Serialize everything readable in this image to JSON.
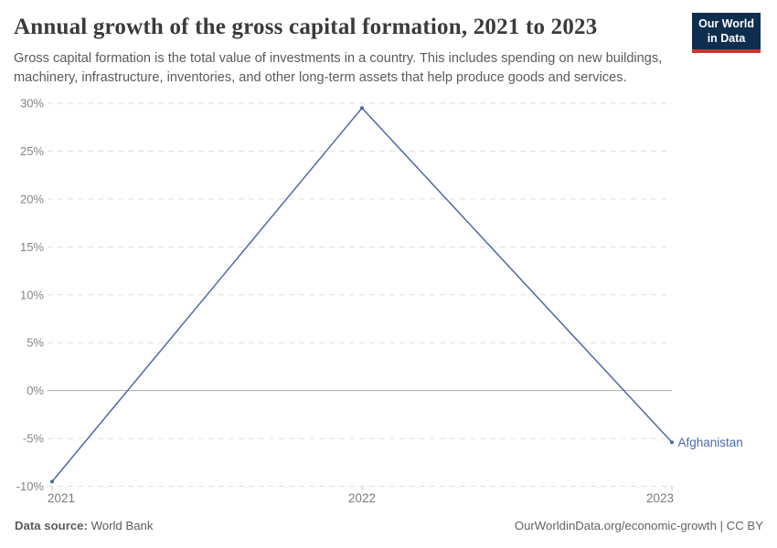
{
  "header": {
    "title": "Annual growth of the gross capital formation, 2021 to 2023",
    "subtitle": "Gross capital formation is the total value of investments in a country. This includes spending on new buildings, machinery, infrastructure, inventories, and other long-term assets that help produce goods and services.",
    "logo": {
      "line1": "Our World",
      "line2": "in Data"
    }
  },
  "footer": {
    "datasource_label": "Data source:",
    "datasource_value": "World Bank",
    "credit": "OurWorldinData.org/economic-growth | CC BY"
  },
  "colors": {
    "series": "#4b6aa5",
    "grid": "#dedede",
    "zero_line": "#ababab",
    "axis_text": "#858585",
    "x_tick": "#c4c4c4",
    "title_text": "#3a3a3a",
    "subtitle_text": "#5b5b5b",
    "logo_bg": "#0f2d4e",
    "logo_red": "#d0342c"
  },
  "chart_data": {
    "type": "line",
    "title": "Annual growth of the gross capital formation, 2021 to 2023",
    "xlabel": "",
    "ylabel": "",
    "x": [
      2021,
      2022,
      2023
    ],
    "x_tick_labels": [
      "2021",
      "2022",
      "2023"
    ],
    "series": [
      {
        "name": "Afghanistan",
        "values": [
          -9.5,
          29.5,
          -5.4
        ]
      }
    ],
    "ylim": [
      -10,
      30
    ],
    "yticks": [
      -10,
      -5,
      0,
      5,
      10,
      15,
      20,
      25,
      30
    ],
    "ytick_labels": [
      "-10%",
      "-5%",
      "0%",
      "5%",
      "10%",
      "15%",
      "20%",
      "25%",
      "30%"
    ],
    "grid": "horizontal-dashed",
    "zero_line": true,
    "legend": "inline-end-label"
  }
}
